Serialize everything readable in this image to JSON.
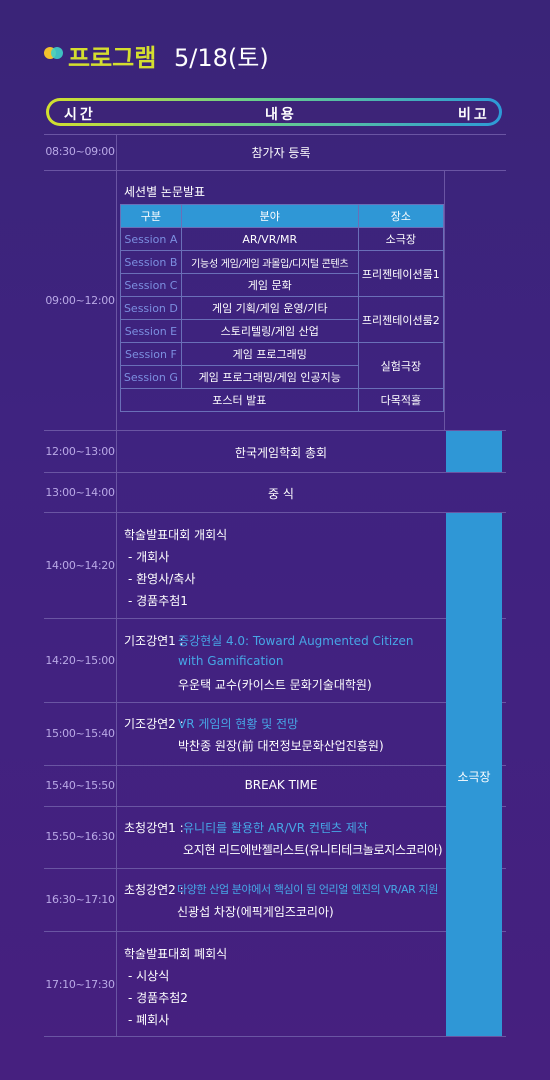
{
  "header": {
    "title": "프로그램",
    "date": "5/18(토)"
  },
  "columns": {
    "time": "시간",
    "content": "내용",
    "note": "비고"
  },
  "registration": {
    "time": "08:30~09:00",
    "text": "참가자 등록"
  },
  "papers": {
    "time": "09:00~12:00",
    "title": "세션별 논문발표",
    "table_headers": [
      "구분",
      "분야",
      "장소"
    ],
    "rows": [
      {
        "session": "Session A",
        "field": "AR/VR/MR"
      },
      {
        "session": "Session B",
        "field": "기능성 게임/게임 과몰입/디지털 콘텐츠"
      },
      {
        "session": "Session C",
        "field": "게임 문화"
      },
      {
        "session": "Session D",
        "field": "게임 기획/게임 운영/기타"
      },
      {
        "session": "Session E",
        "field": "스토리텔링/게임 산업"
      },
      {
        "session": "Session F",
        "field": "게임 프로그래밍"
      },
      {
        "session": "Session G",
        "field": "게임 프로그래밍/게임 인공지능"
      }
    ],
    "places": [
      "소극장",
      "프리젠테이션룸1",
      "프리젠테이션룸2",
      "실험극장",
      "다목적홀"
    ],
    "poster": "포스터 발표"
  },
  "general_meeting": {
    "time": "12:00~13:00",
    "text": "한국게임학회 총회"
  },
  "lunch": {
    "time": "13:00~14:00",
    "text": "중 식"
  },
  "opening": {
    "time": "14:00~14:20",
    "title": "학술발표대회 개회식",
    "items": [
      "- 개회사",
      "- 환영사/축사",
      "- 경품추첨1"
    ]
  },
  "keynote1": {
    "time": "14:20~15:00",
    "label": "기조강연1 :",
    "topic_line1": "증강현실 4.0: Toward Augmented Citizen",
    "topic_line2": "with Gamification",
    "speaker": "우운택 교수(카이스트 문화기술대학원)"
  },
  "keynote2": {
    "time": "15:00~15:40",
    "label": "기조강연2 :",
    "topic": "VR 게임의 현황 및 전망",
    "speaker": "박찬종 원장(前 대전정보문화산업진흥원)"
  },
  "break": {
    "time": "15:40~15:50",
    "text": "BREAK TIME"
  },
  "invited1": {
    "time": "15:50~16:30",
    "label": "초청강연1 :",
    "topic": "유니티를 활용한 AR/VR 컨텐츠 제작",
    "speaker": "오지현 리드에반젤리스트(유니티테크놀로지스코리아)"
  },
  "invited2": {
    "time": "16:30~17:10",
    "label": "초청강연2 :",
    "topic": "다양한 산업 분야에서 핵심이 된 언리얼 엔진의 VR/AR 지원",
    "speaker": "신광섭 차장(에픽게임즈코리아)"
  },
  "closing": {
    "time": "17:10~17:30",
    "title": "학술발표대회 폐회식",
    "items": [
      "- 시상식",
      "- 경품추첨2",
      "- 폐회사"
    ]
  },
  "venue_note": "소극장"
}
